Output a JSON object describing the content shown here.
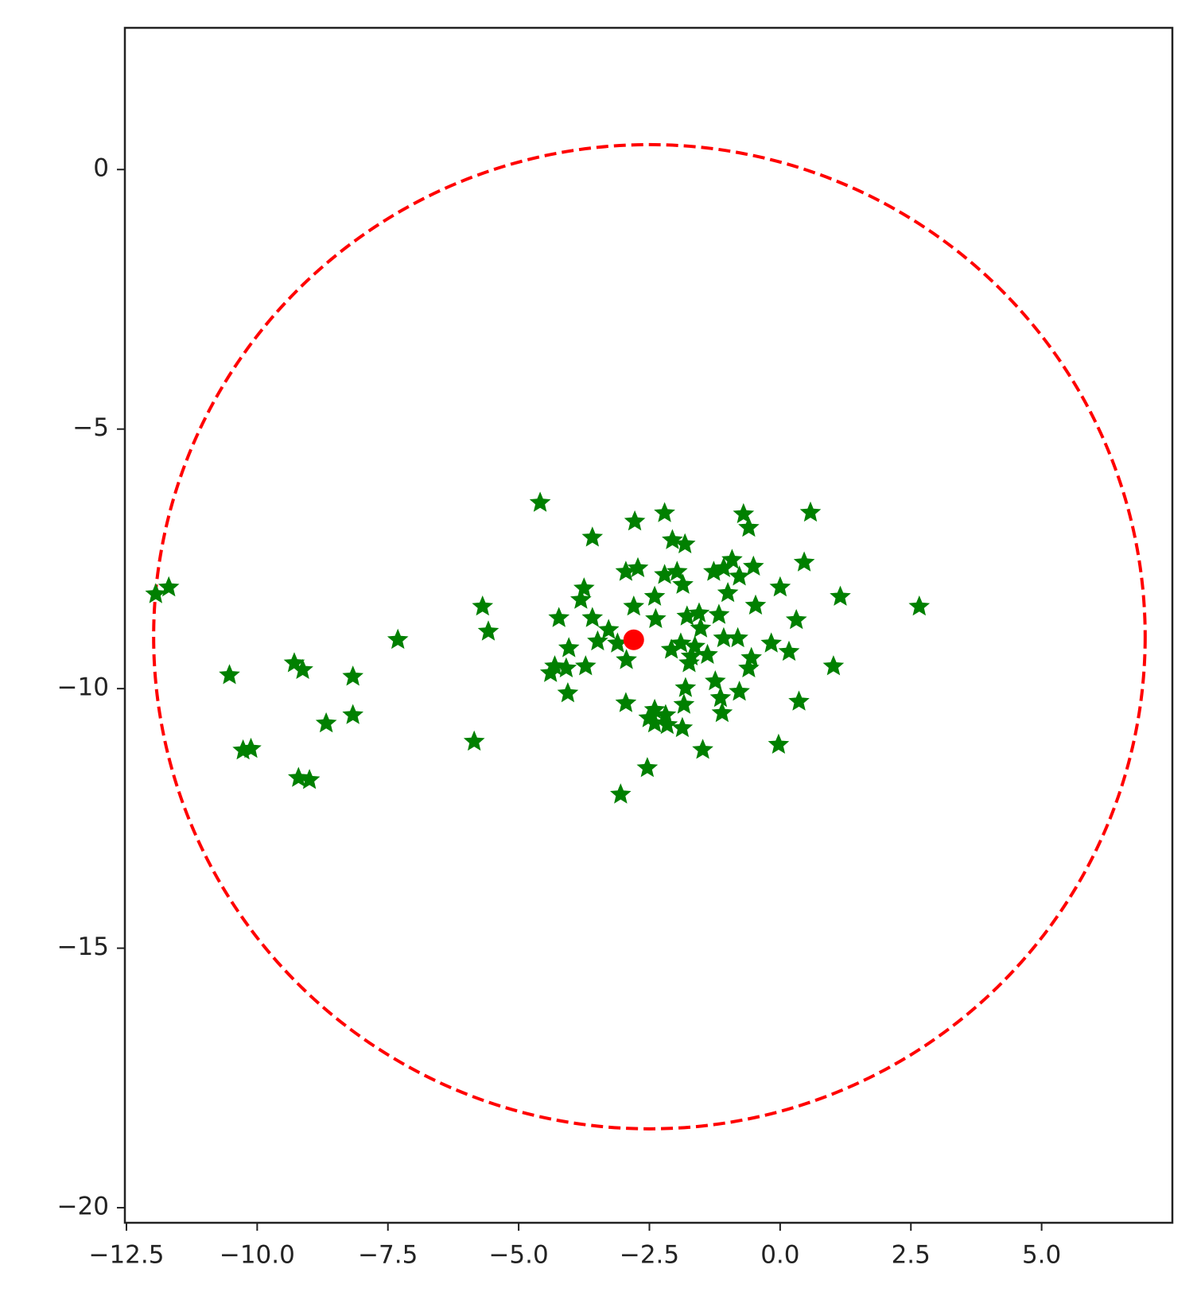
{
  "chart_data": {
    "type": "scatter",
    "xlim": [
      -12.53,
      7.5
    ],
    "ylim": [
      -20.29,
      2.73
    ],
    "xticks": [
      {
        "value": -12.5,
        "label": "−12.5"
      },
      {
        "value": -10,
        "label": "−10.0"
      },
      {
        "value": -7.5,
        "label": "−7.5"
      },
      {
        "value": -5,
        "label": "−5.0"
      },
      {
        "value": -2.5,
        "label": "−2.5"
      },
      {
        "value": 0,
        "label": "0.0"
      },
      {
        "value": 2.5,
        "label": "2.5"
      },
      {
        "value": 5,
        "label": "5.0"
      }
    ],
    "yticks": [
      0,
      {
        "value": -5,
        "label": "−5"
      },
      {
        "value": -10,
        "label": "−10"
      },
      {
        "value": -15,
        "label": "−15"
      },
      {
        "value": -20,
        "label": "−20"
      }
    ],
    "grid": false,
    "circle": {
      "center_x": -2.5,
      "center_y": -9.0,
      "radius": 9.48,
      "color": "#ff0000",
      "linestyle": "dashed"
    },
    "series": [
      {
        "color": "#008000",
        "marker": "star",
        "x": [
          -4.59,
          -2.78,
          -2.21,
          -0.7,
          0.58,
          -0.6,
          -3.59,
          -2.06,
          -1.82,
          0.46,
          -0.92,
          -0.51,
          -2.95,
          -2.72,
          -2.21,
          -1.97,
          -1.27,
          -1.08,
          -0.78,
          -1.86,
          -3.75,
          0.0,
          1.15,
          -11.94,
          -11.69,
          2.66,
          -5.69,
          -3.81,
          -2.4,
          -2.8,
          -1.0,
          -0.47,
          -1.55,
          -1.78,
          -1.17,
          -4.23,
          -3.59,
          -2.38,
          0.31,
          -5.58,
          -3.28,
          -1.52,
          -1.08,
          -7.31,
          -3.49,
          -3.11,
          -1.9,
          -1.63,
          -0.81,
          -0.17,
          -4.04,
          -2.08,
          -1.7,
          -1.39,
          0.17,
          -0.55,
          -2.94,
          -9.29,
          -9.13,
          -10.53,
          -8.17,
          1.02,
          -4.31,
          -3.72,
          -1.74,
          -4.09,
          -4.39,
          -0.6,
          -1.24,
          -1.81,
          -4.06,
          -0.78,
          -1.14,
          -2.95,
          0.36,
          -1.84,
          -2.4,
          -1.11,
          -8.17,
          -2.19,
          -2.51,
          -8.68,
          -2.4,
          -2.16,
          -1.87,
          -5.85,
          -0.03,
          -10.27,
          -10.12,
          -1.48,
          -2.54,
          -9.21,
          -9.0,
          -3.05
        ],
        "y": [
          -6.42,
          -6.78,
          -6.62,
          -6.64,
          -6.61,
          -6.9,
          -7.09,
          -7.14,
          -7.22,
          -7.57,
          -7.52,
          -7.65,
          -7.75,
          -7.68,
          -7.81,
          -7.75,
          -7.75,
          -7.68,
          -7.84,
          -8.0,
          -8.07,
          -8.05,
          -8.23,
          -8.18,
          -8.05,
          -8.42,
          -8.42,
          -8.29,
          -8.23,
          -8.42,
          -8.16,
          -8.4,
          -8.55,
          -8.61,
          -8.58,
          -8.64,
          -8.64,
          -8.66,
          -8.68,
          -8.9,
          -8.87,
          -8.84,
          -9.03,
          -9.06,
          -9.09,
          -9.13,
          -9.13,
          -9.19,
          -9.03,
          -9.13,
          -9.22,
          -9.25,
          -9.38,
          -9.35,
          -9.29,
          -9.41,
          -9.45,
          -9.51,
          -9.64,
          -9.74,
          -9.77,
          -9.57,
          -9.57,
          -9.57,
          -9.51,
          -9.61,
          -9.7,
          -9.61,
          -9.86,
          -9.99,
          -10.09,
          -10.06,
          -10.18,
          -10.28,
          -10.25,
          -10.31,
          -10.41,
          -10.47,
          -10.51,
          -10.51,
          -10.57,
          -10.67,
          -10.67,
          -10.7,
          -10.76,
          -11.02,
          -11.08,
          -11.19,
          -11.16,
          -11.18,
          -11.53,
          -11.72,
          -11.76,
          -12.04
        ]
      },
      {
        "color": "#ff0000",
        "marker": "circle",
        "x": [
          -2.8
        ],
        "y": [
          -9.06
        ]
      }
    ]
  }
}
